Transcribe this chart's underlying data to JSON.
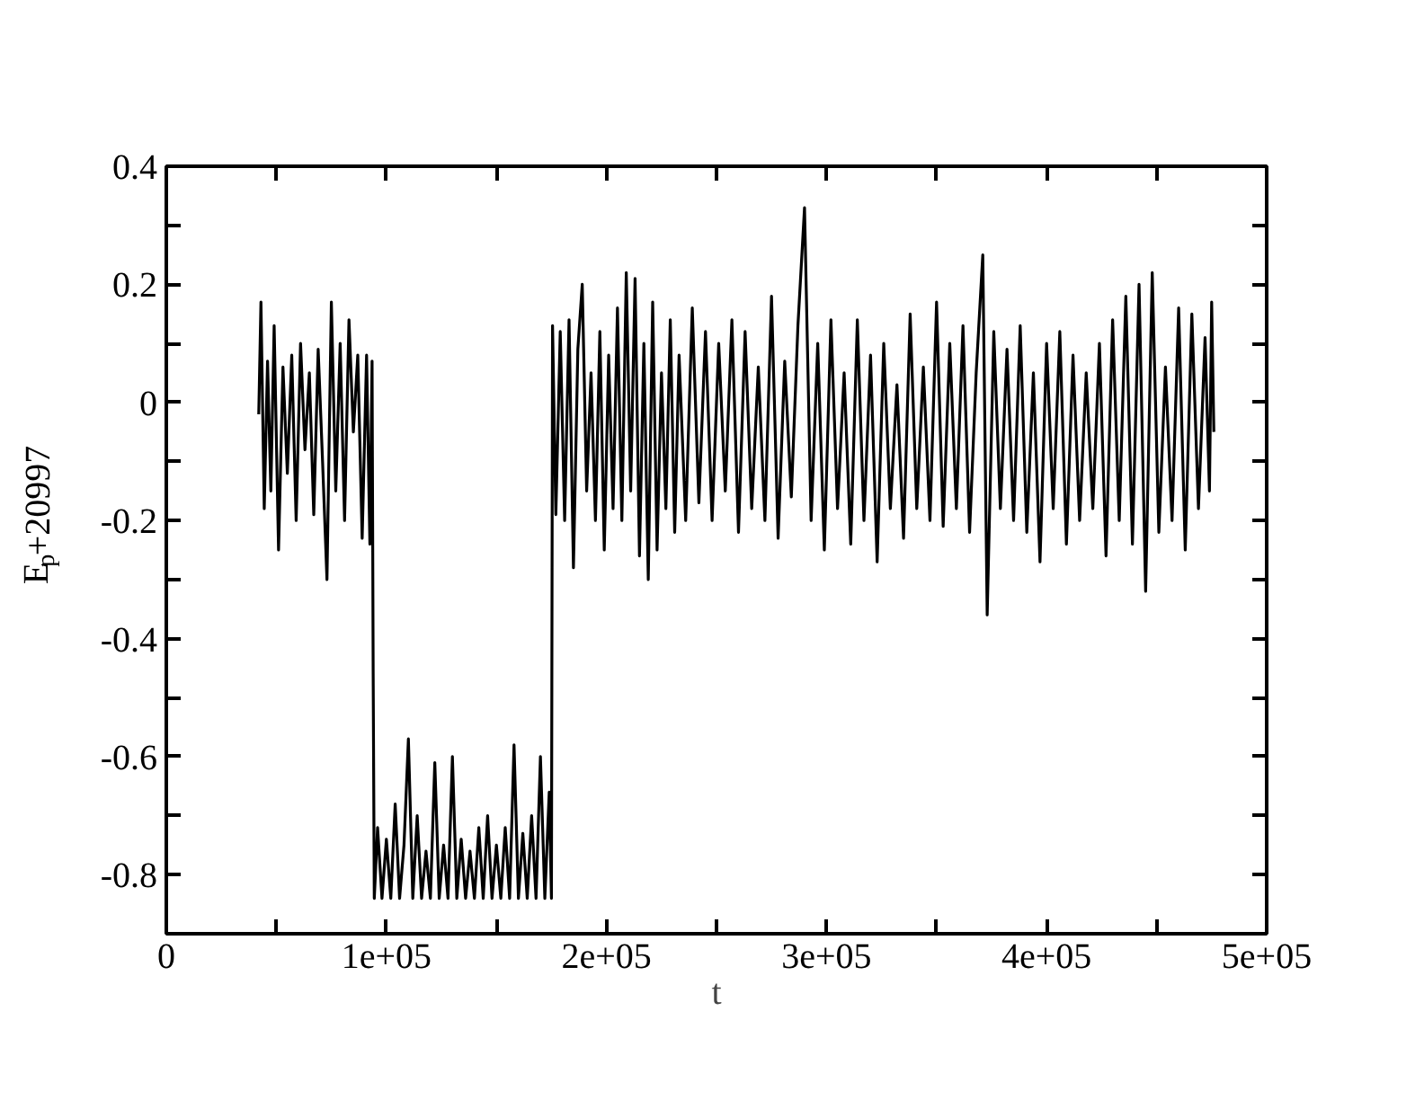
{
  "chart_data": {
    "type": "line",
    "xlabel": "t",
    "ylabel": "E$_{p}$+20997",
    "xlim": [
      0,
      500000
    ],
    "ylim": [
      -0.9,
      0.4
    ],
    "xticks": [
      0,
      {
        "value": 50000,
        "label": null
      },
      {
        "value": 100000,
        "label": "1e+05"
      },
      {
        "value": 150000,
        "label": null
      },
      {
        "value": 200000,
        "label": "2e+05"
      },
      {
        "value": 250000,
        "label": null
      },
      {
        "value": 300000,
        "label": "3e+05"
      },
      {
        "value": 350000,
        "label": null
      },
      {
        "value": 400000,
        "label": "4e+05"
      },
      {
        "value": 450000,
        "label": null
      },
      {
        "value": 500000,
        "label": "5e+05"
      }
    ],
    "yticks": [
      {
        "value": -0.9,
        "label": null
      },
      -0.8,
      {
        "value": -0.7,
        "label": null
      },
      -0.6,
      {
        "value": -0.5,
        "label": null
      },
      -0.4,
      {
        "value": -0.3,
        "label": null
      },
      -0.2,
      {
        "value": -0.1,
        "label": null
      },
      0,
      {
        "value": 0.1,
        "label": null
      },
      0.2,
      {
        "value": 0.3,
        "label": null
      },
      0.4
    ],
    "grid": false,
    "marker": "none",
    "line_style": "solid",
    "series": [
      {
        "color": "#000000",
        "x": [
          42000,
          43000,
          44500,
          46000,
          47500,
          49000,
          51000,
          53000,
          55000,
          57000,
          59000,
          61000,
          63000,
          65000,
          67000,
          69000,
          71000,
          73000,
          75000,
          77000,
          79000,
          81000,
          83000,
          85000,
          87000,
          89000,
          91000,
          92500,
          93500,
          94000,
          94500,
          96000,
          98000,
          100000,
          102000,
          104000,
          106000,
          108000,
          110000,
          112000,
          114000,
          116000,
          118000,
          120000,
          122000,
          124000,
          126000,
          128000,
          130000,
          132000,
          134000,
          136000,
          138000,
          140000,
          142000,
          144000,
          146000,
          148000,
          150000,
          152000,
          154000,
          156000,
          158000,
          160000,
          162000,
          164000,
          166000,
          168000,
          170000,
          172000,
          174000,
          175000,
          175500,
          177000,
          179000,
          181000,
          183000,
          185000,
          187000,
          189000,
          191000,
          193000,
          195000,
          197000,
          199000,
          201000,
          203000,
          205000,
          207000,
          209000,
          211000,
          213000,
          215000,
          217000,
          219000,
          221000,
          223000,
          225000,
          227000,
          229000,
          231000,
          233000,
          236000,
          239000,
          242000,
          245000,
          248000,
          251000,
          254000,
          257000,
          260000,
          263000,
          266000,
          269000,
          272000,
          275000,
          278000,
          281000,
          284000,
          287000,
          290000,
          293000,
          296000,
          299000,
          302000,
          305000,
          308000,
          311000,
          314000,
          317000,
          320000,
          323000,
          326000,
          329000,
          332000,
          335000,
          338000,
          341000,
          344000,
          347000,
          350000,
          353000,
          356000,
          359000,
          362000,
          365000,
          368000,
          371000,
          373000,
          376000,
          379000,
          382000,
          385000,
          388000,
          391000,
          394000,
          397000,
          400000,
          403000,
          406000,
          409000,
          412000,
          415000,
          418000,
          421000,
          424000,
          427000,
          430000,
          433000,
          436000,
          439000,
          442000,
          445000,
          448000,
          451000,
          454000,
          457000,
          460000,
          463000,
          466000,
          469000,
          472000,
          474000,
          475000,
          476000
        ],
        "values": [
          -0.02,
          0.17,
          -0.18,
          0.07,
          -0.15,
          0.13,
          -0.25,
          0.06,
          -0.12,
          0.08,
          -0.2,
          0.1,
          -0.08,
          0.05,
          -0.19,
          0.09,
          -0.1,
          -0.3,
          0.17,
          -0.15,
          0.1,
          -0.2,
          0.14,
          -0.05,
          0.08,
          -0.23,
          0.08,
          -0.24,
          0.07,
          -0.46,
          -0.84,
          -0.72,
          -0.84,
          -0.74,
          -0.84,
          -0.68,
          -0.84,
          -0.75,
          -0.57,
          -0.84,
          -0.7,
          -0.84,
          -0.76,
          -0.84,
          -0.61,
          -0.84,
          -0.75,
          -0.84,
          -0.6,
          -0.84,
          -0.74,
          -0.84,
          -0.76,
          -0.84,
          -0.72,
          -0.84,
          -0.7,
          -0.84,
          -0.75,
          -0.84,
          -0.72,
          -0.84,
          -0.58,
          -0.84,
          -0.73,
          -0.84,
          -0.7,
          -0.84,
          -0.6,
          -0.84,
          -0.66,
          -0.84,
          0.13,
          -0.19,
          0.12,
          -0.2,
          0.14,
          -0.28,
          0.09,
          0.2,
          -0.15,
          0.05,
          -0.2,
          0.12,
          -0.25,
          0.08,
          -0.18,
          0.16,
          -0.2,
          0.22,
          -0.15,
          0.21,
          -0.26,
          0.1,
          -0.3,
          0.17,
          -0.25,
          0.05,
          -0.18,
          0.14,
          -0.22,
          0.08,
          -0.2,
          0.16,
          -0.17,
          0.12,
          -0.2,
          0.1,
          -0.15,
          0.14,
          -0.22,
          0.12,
          -0.18,
          0.06,
          -0.2,
          0.18,
          -0.23,
          0.07,
          -0.16,
          0.13,
          0.33,
          -0.2,
          0.1,
          -0.25,
          0.14,
          -0.18,
          0.05,
          -0.24,
          0.14,
          -0.2,
          0.08,
          -0.27,
          0.1,
          -0.18,
          0.03,
          -0.23,
          0.15,
          -0.18,
          0.06,
          -0.2,
          0.17,
          -0.21,
          0.1,
          -0.18,
          0.13,
          -0.22,
          0.05,
          0.25,
          -0.36,
          0.12,
          -0.18,
          0.09,
          -0.2,
          0.13,
          -0.22,
          0.05,
          -0.27,
          0.1,
          -0.18,
          0.12,
          -0.24,
          0.08,
          -0.2,
          0.05,
          -0.18,
          0.1,
          -0.26,
          0.14,
          -0.2,
          0.18,
          -0.24,
          0.2,
          -0.32,
          0.22,
          -0.22,
          0.06,
          -0.2,
          0.16,
          -0.25,
          0.15,
          -0.18,
          0.11,
          -0.15,
          0.17,
          -0.05
        ]
      }
    ]
  }
}
